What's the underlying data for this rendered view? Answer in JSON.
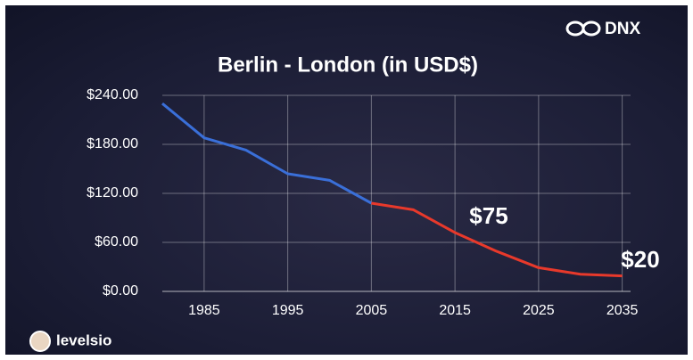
{
  "chart_data": {
    "type": "line",
    "title": "Berlin - London (in USD$)",
    "brand": "DNX",
    "credit": "levelsio",
    "annotations": [
      "$75",
      "$20"
    ],
    "x": [
      1980,
      1985,
      1990,
      1995,
      2000,
      2005,
      2010,
      2015,
      2020,
      2025,
      2030,
      2035
    ],
    "series": [
      {
        "color": "#3a6fd8",
        "values": [
          230,
          188,
          173,
          144,
          136,
          108,
          null,
          null,
          null,
          null,
          null,
          null
        ]
      },
      {
        "color": "#e8392b",
        "values": [
          null,
          null,
          null,
          null,
          null,
          108,
          100,
          72,
          49,
          29,
          21,
          19
        ]
      }
    ],
    "xlim": [
      1980,
      2036
    ],
    "ylim": [
      0,
      240
    ],
    "xticks": [
      1985,
      1995,
      2005,
      2015,
      2025,
      2035
    ],
    "yticks": [
      {
        "value": 0,
        "label": "$0.00"
      },
      {
        "value": 60,
        "label": "$60.00"
      },
      {
        "value": 120,
        "label": "$120.00"
      },
      {
        "value": 180,
        "label": "$180.00"
      },
      {
        "value": 240,
        "label": "$240.00"
      }
    ],
    "grid": true
  }
}
